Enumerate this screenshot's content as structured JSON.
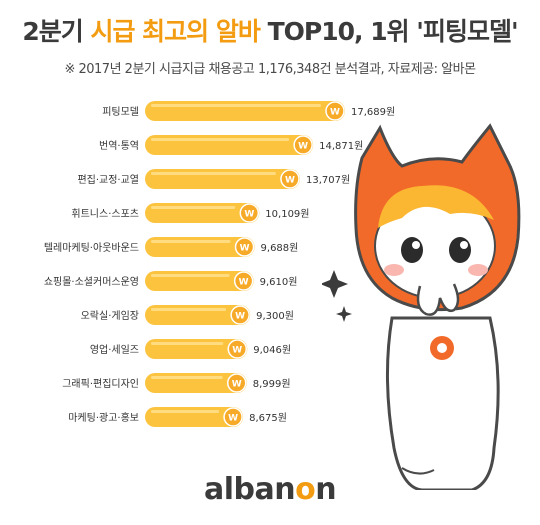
{
  "header": {
    "title_part1": "2분기 ",
    "title_accent": "시급 최고의 알바",
    "title_part2": " TOP10, 1위 '피팅모델'",
    "subtitle": "※ 2017년 2분기 시급지급 채용공고 1,176,348건 분석결과,  자료제공: 알바몬"
  },
  "chart_data": {
    "type": "bar",
    "orientation": "horizontal",
    "categories": [
      "피팅모델",
      "번역·통역",
      "편집·교정·교열",
      "휘트니스·스포츠",
      "텔레마케팅·아웃바운드",
      "쇼핑몰·소셜커머스운영",
      "오락실·게임장",
      "영업·세일즈",
      "그래픽·편집디자인",
      "마케팅·광고·홍보"
    ],
    "values": [
      17689,
      14871,
      13707,
      10109,
      9688,
      9610,
      9300,
      9046,
      8999,
      8675
    ],
    "value_labels": [
      "17,689원",
      "14,871원",
      "13,707원",
      "10,109원",
      "9,688원",
      "9,610원",
      "9,300원",
      "9,046원",
      "8,999원",
      "8,675원"
    ],
    "bar_color": "#fcc33e",
    "coin_symbol": "W",
    "grid": false,
    "legend": "none"
  },
  "brand": {
    "logo_pre": "alban",
    "logo_o": "o",
    "logo_post": "n"
  },
  "colors": {
    "accent": "#f39c12",
    "text_dark": "#3b3b3b",
    "mascot_orange": "#f26a2a",
    "mascot_hair": "#fbb732"
  }
}
